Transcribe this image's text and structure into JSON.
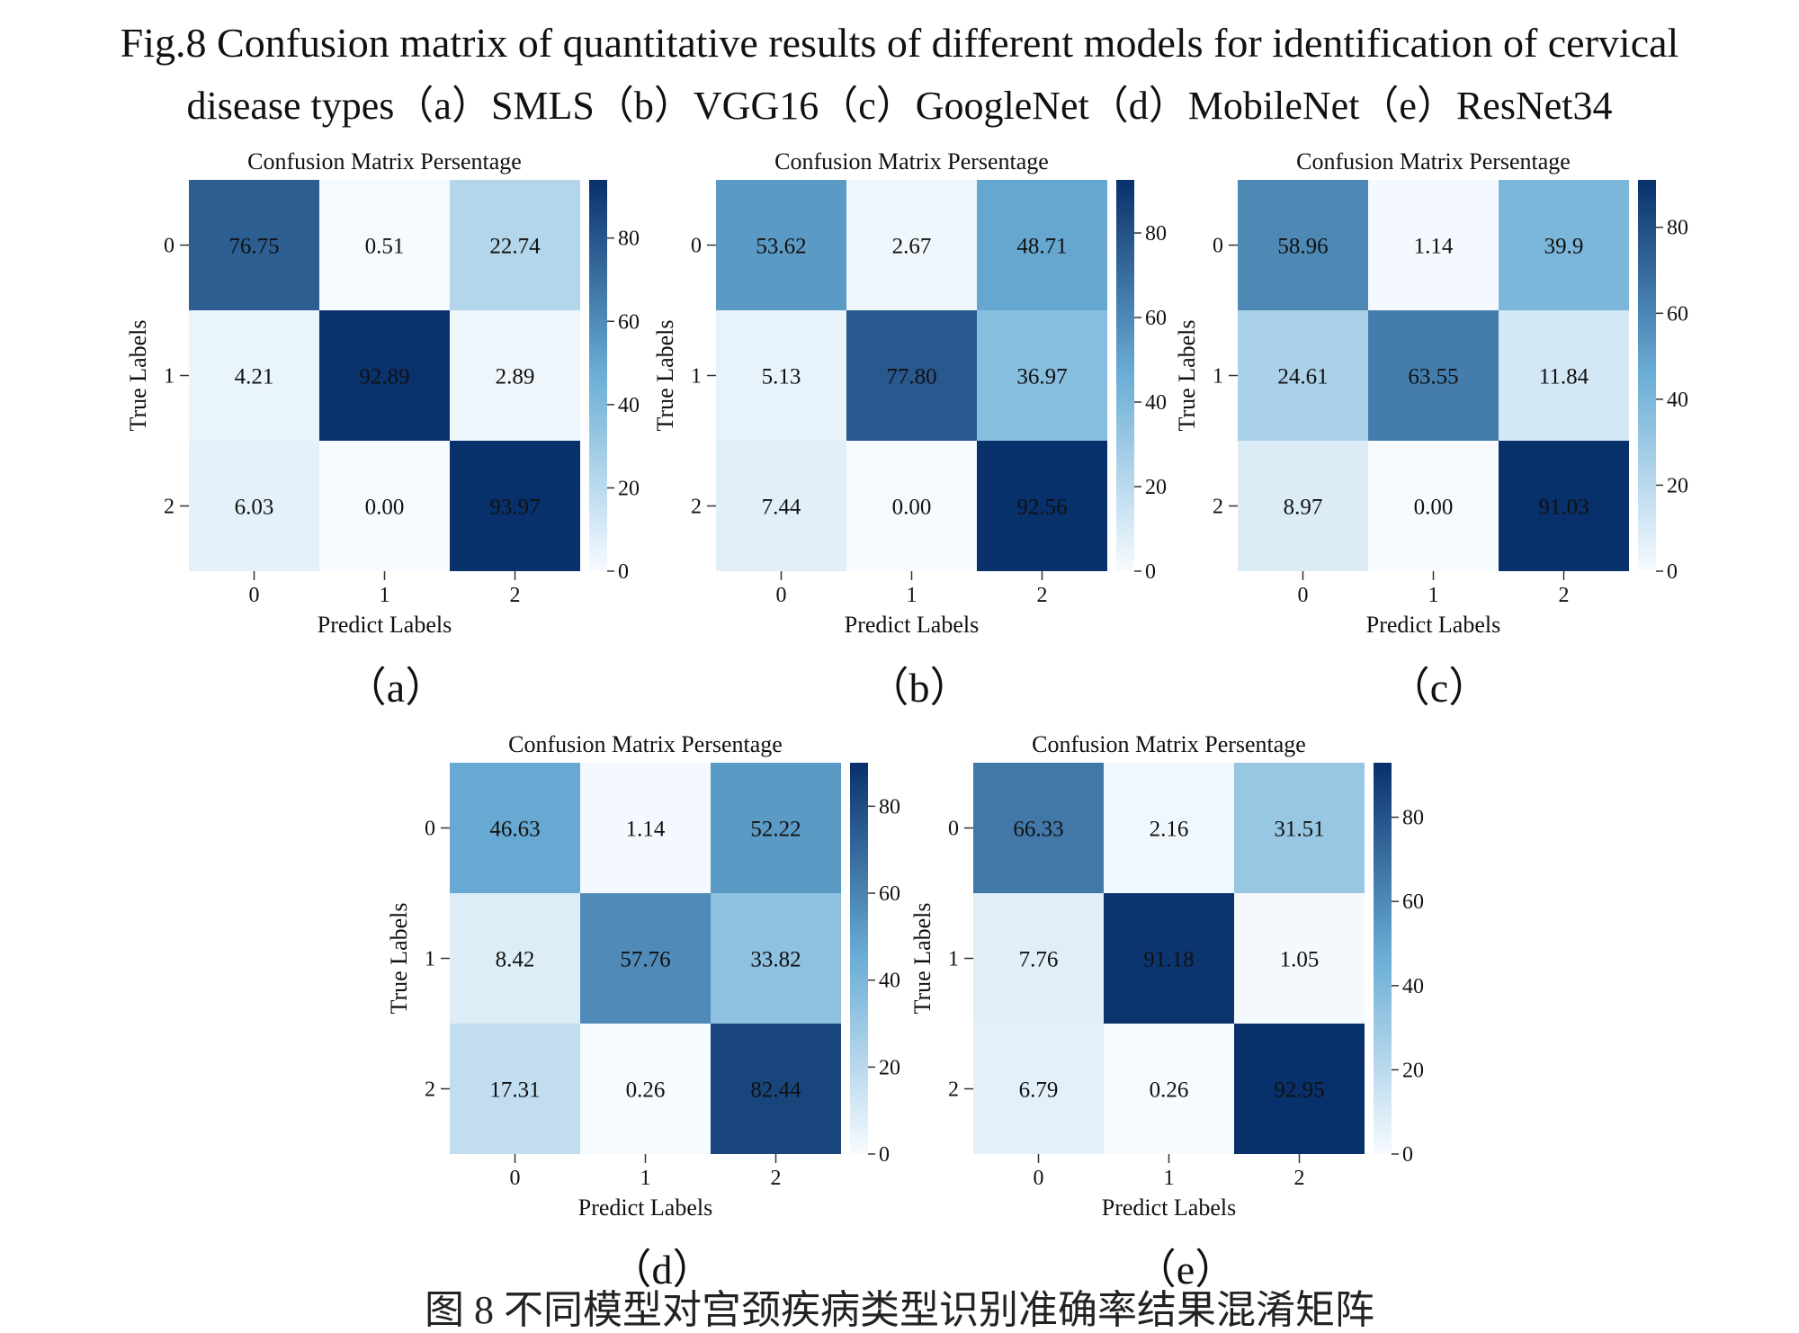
{
  "figure": {
    "caption_line1": "Fig.8 Confusion matrix of quantitative results of different models for identification of cervical",
    "caption_line2": "disease types（a）SMLS（b）VGG16（c）GoogleNet（d）MobileNet（e）ResNet34",
    "bottom_text": "图 8  不同模型对宫颈疾病类型识别准确率结果混淆矩阵"
  },
  "colors": {
    "cmap_low": "#f7fbff",
    "cmap_mid": "#6baed6",
    "cmap_high": "#08306b",
    "text_dark": "#111111"
  },
  "chart_data": [
    {
      "id": "a",
      "panel_label": "（a）",
      "type": "heatmap",
      "title": "Confusion Matrix Persentage",
      "xlabel": "Predict Labels",
      "ylabel": "True Labels",
      "x_categories": [
        "0",
        "1",
        "2"
      ],
      "y_categories": [
        "0",
        "1",
        "2"
      ],
      "values": [
        [
          76.75,
          0.51,
          22.74
        ],
        [
          4.21,
          92.89,
          2.89
        ],
        [
          6.03,
          0.0,
          93.97
        ]
      ],
      "value_labels": [
        [
          "76.75",
          "0.51",
          "22.74"
        ],
        [
          "4.21",
          "92.89",
          "2.89"
        ],
        [
          "6.03",
          "0.00",
          "93.97"
        ]
      ],
      "colorbar_ticks": [
        "0",
        "20",
        "40",
        "60",
        "80"
      ],
      "colorbar_range": [
        0,
        93.97
      ]
    },
    {
      "id": "b",
      "panel_label": "（b）",
      "type": "heatmap",
      "title": "Confusion Matrix Persentage",
      "xlabel": "Predict Labels",
      "ylabel": "True Labels",
      "x_categories": [
        "0",
        "1",
        "2"
      ],
      "y_categories": [
        "0",
        "1",
        "2"
      ],
      "values": [
        [
          53.62,
          2.67,
          48.71
        ],
        [
          5.13,
          77.8,
          36.97
        ],
        [
          7.44,
          0.0,
          92.56
        ]
      ],
      "value_labels": [
        [
          "53.62",
          "2.67",
          "48.71"
        ],
        [
          "5.13",
          "77.80",
          "36.97"
        ],
        [
          "7.44",
          "0.00",
          "92.56"
        ]
      ],
      "colorbar_ticks": [
        "0",
        "20",
        "40",
        "60",
        "80"
      ],
      "colorbar_range": [
        0,
        92.56
      ]
    },
    {
      "id": "c",
      "panel_label": "（c）",
      "type": "heatmap",
      "title": "Confusion Matrix Persentage",
      "xlabel": "Predict Labels",
      "ylabel": "True Labels",
      "x_categories": [
        "0",
        "1",
        "2"
      ],
      "y_categories": [
        "0",
        "1",
        "2"
      ],
      "values": [
        [
          58.96,
          1.14,
          39.9
        ],
        [
          24.61,
          63.55,
          11.84
        ],
        [
          8.97,
          0.0,
          91.03
        ]
      ],
      "value_labels": [
        [
          "58.96",
          "1.14",
          "39.9"
        ],
        [
          "24.61",
          "63.55",
          "11.84"
        ],
        [
          "8.97",
          "0.00",
          "91.03"
        ]
      ],
      "colorbar_ticks": [
        "0",
        "20",
        "40",
        "60",
        "80"
      ],
      "colorbar_range": [
        0,
        91.03
      ]
    },
    {
      "id": "d",
      "panel_label": "（d）",
      "type": "heatmap",
      "title": "Confusion Matrix Persentage",
      "xlabel": "Predict Labels",
      "ylabel": "True Labels",
      "x_categories": [
        "0",
        "1",
        "2"
      ],
      "y_categories": [
        "0",
        "1",
        "2"
      ],
      "values": [
        [
          46.63,
          1.14,
          52.22
        ],
        [
          8.42,
          57.76,
          33.82
        ],
        [
          17.31,
          0.26,
          82.44
        ]
      ],
      "value_labels": [
        [
          "46.63",
          "1.14",
          "52.22"
        ],
        [
          "8.42",
          "57.76",
          "33.82"
        ],
        [
          "17.31",
          "0.26",
          "82.44"
        ]
      ],
      "colorbar_ticks": [
        "0",
        "20",
        "40",
        "60",
        "80"
      ],
      "colorbar_range": [
        0,
        90
      ]
    },
    {
      "id": "e",
      "panel_label": "（e）",
      "type": "heatmap",
      "title": "Confusion Matrix Persentage",
      "xlabel": "Predict Labels",
      "ylabel": "True Labels",
      "x_categories": [
        "0",
        "1",
        "2"
      ],
      "y_categories": [
        "0",
        "1",
        "2"
      ],
      "values": [
        [
          66.33,
          2.16,
          31.51
        ],
        [
          7.76,
          91.18,
          1.05
        ],
        [
          6.79,
          0.26,
          92.95
        ]
      ],
      "value_labels": [
        [
          "66.33",
          "2.16",
          "31.51"
        ],
        [
          "7.76",
          "91.18",
          "1.05"
        ],
        [
          "6.79",
          "0.26",
          "92.95"
        ]
      ],
      "colorbar_ticks": [
        "0",
        "20",
        "40",
        "60",
        "80"
      ],
      "colorbar_range": [
        0,
        92.95
      ]
    }
  ]
}
